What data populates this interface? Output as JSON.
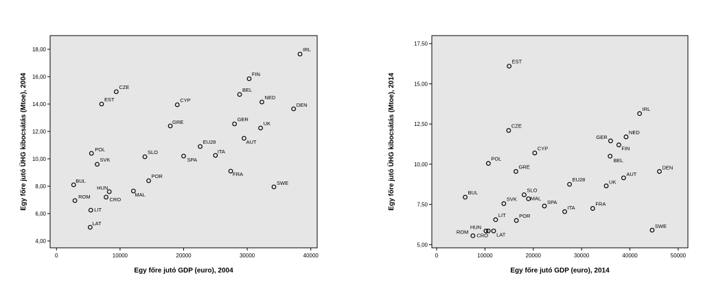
{
  "chart_data": [
    {
      "type": "scatter",
      "xlabel": "Egy főre jutó GDP (euro), 2004",
      "ylabel": "Egy főre jutó ÜHG kibocsátás (Mtoe), 2004",
      "xlim": [
        -1000,
        41000
      ],
      "ylim": [
        3.5,
        19.0
      ],
      "xticks": [
        0,
        10000,
        20000,
        30000,
        40000
      ],
      "xtick_labels": [
        "0",
        "10000",
        "20000",
        "30000",
        "40000"
      ],
      "yticks": [
        4,
        6,
        8,
        10,
        12,
        14,
        16,
        18
      ],
      "ytick_labels": [
        "4,00",
        "6,00",
        "8,00",
        "10,00",
        "12,00",
        "14,00",
        "16,00",
        "18,00"
      ],
      "points": [
        {
          "label": "IRL",
          "x": 38300,
          "y": 17.65
        },
        {
          "label": "FIN",
          "x": 30300,
          "y": 15.85
        },
        {
          "label": "CZE",
          "x": 9400,
          "y": 14.9
        },
        {
          "label": "BEL",
          "x": 28800,
          "y": 14.7
        },
        {
          "label": "NED",
          "x": 32300,
          "y": 14.15
        },
        {
          "label": "EST",
          "x": 7100,
          "y": 14.0
        },
        {
          "label": "CYP",
          "x": 19000,
          "y": 13.95
        },
        {
          "label": "DEN",
          "x": 37300,
          "y": 13.65
        },
        {
          "label": "GER",
          "x": 28000,
          "y": 12.55
        },
        {
          "label": "GRE",
          "x": 17900,
          "y": 12.4
        },
        {
          "label": "UK",
          "x": 32100,
          "y": 12.25
        },
        {
          "label": "AUT",
          "x": 29500,
          "y": 11.5
        },
        {
          "label": "EU28",
          "x": 22600,
          "y": 10.9
        },
        {
          "label": "POL",
          "x": 5500,
          "y": 10.4
        },
        {
          "label": "ITA",
          "x": 25000,
          "y": 10.25
        },
        {
          "label": "SPA",
          "x": 20000,
          "y": 10.2
        },
        {
          "label": "SLO",
          "x": 13900,
          "y": 10.15
        },
        {
          "label": "SVK",
          "x": 6400,
          "y": 9.6
        },
        {
          "label": "FRA",
          "x": 27400,
          "y": 9.1
        },
        {
          "label": "POR",
          "x": 14500,
          "y": 8.4
        },
        {
          "label": "BUL",
          "x": 2700,
          "y": 8.1
        },
        {
          "label": "SWE",
          "x": 34200,
          "y": 7.95
        },
        {
          "label": "MAL",
          "x": 12100,
          "y": 7.65
        },
        {
          "label": "HUN",
          "x": 8300,
          "y": 7.6
        },
        {
          "label": "CRO",
          "x": 7800,
          "y": 7.2
        },
        {
          "label": "ROM",
          "x": 2900,
          "y": 6.95
        },
        {
          "label": "LIT",
          "x": 5400,
          "y": 6.25
        },
        {
          "label": "LAT",
          "x": 5300,
          "y": 5.0
        }
      ]
    },
    {
      "type": "scatter",
      "xlabel": "Egy főre jutó GDP (euro), 2014",
      "ylabel": "Egy főre jutó ÜHG kibocsátás (Mtoe), 2014",
      "xlim": [
        -1000,
        52000
      ],
      "ylim": [
        4.8,
        18.0
      ],
      "xticks": [
        0,
        10000,
        20000,
        30000,
        40000,
        50000
      ],
      "xtick_labels": [
        "0",
        "10000",
        "20000",
        "30000",
        "40000",
        "50000"
      ],
      "yticks": [
        5,
        7.5,
        10,
        12.5,
        15,
        17.5
      ],
      "ytick_labels": [
        "5,00",
        "7,50",
        "10,00",
        "12,50",
        "15,00",
        "17,50"
      ],
      "points": [
        {
          "label": "EST",
          "x": 15000,
          "y": 16.1
        },
        {
          "label": "IRL",
          "x": 42000,
          "y": 13.15
        },
        {
          "label": "CZE",
          "x": 14900,
          "y": 12.1
        },
        {
          "label": "NED",
          "x": 39200,
          "y": 11.7
        },
        {
          "label": "GER",
          "x": 36000,
          "y": 11.45
        },
        {
          "label": "FIN",
          "x": 37700,
          "y": 11.2
        },
        {
          "label": "CYP",
          "x": 20300,
          "y": 10.7
        },
        {
          "label": "BEL",
          "x": 35900,
          "y": 10.5
        },
        {
          "label": "POL",
          "x": 10700,
          "y": 10.05
        },
        {
          "label": "DEN",
          "x": 46100,
          "y": 9.55
        },
        {
          "label": "GRE",
          "x": 16400,
          "y": 9.55
        },
        {
          "label": "AUT",
          "x": 38700,
          "y": 9.15
        },
        {
          "label": "EU28",
          "x": 27500,
          "y": 8.75
        },
        {
          "label": "UK",
          "x": 35100,
          "y": 8.65
        },
        {
          "label": "SLO",
          "x": 18100,
          "y": 8.1
        },
        {
          "label": "BUL",
          "x": 5900,
          "y": 7.95
        },
        {
          "label": "MAL",
          "x": 19000,
          "y": 7.85
        },
        {
          "label": "SVK",
          "x": 13900,
          "y": 7.55
        },
        {
          "label": "SPA",
          "x": 22300,
          "y": 7.4
        },
        {
          "label": "FRA",
          "x": 32300,
          "y": 7.25
        },
        {
          "label": "ITA",
          "x": 26500,
          "y": 7.05
        },
        {
          "label": "LIT",
          "x": 12200,
          "y": 6.55
        },
        {
          "label": "POR",
          "x": 16500,
          "y": 6.5
        },
        {
          "label": "SWE",
          "x": 44600,
          "y": 5.9
        },
        {
          "label": "HUN",
          "x": 10200,
          "y": 5.85
        },
        {
          "label": "CRO",
          "x": 10700,
          "y": 5.85
        },
        {
          "label": "LAT",
          "x": 11800,
          "y": 5.85
        },
        {
          "label": "ROM",
          "x": 7500,
          "y": 5.55
        }
      ]
    }
  ]
}
